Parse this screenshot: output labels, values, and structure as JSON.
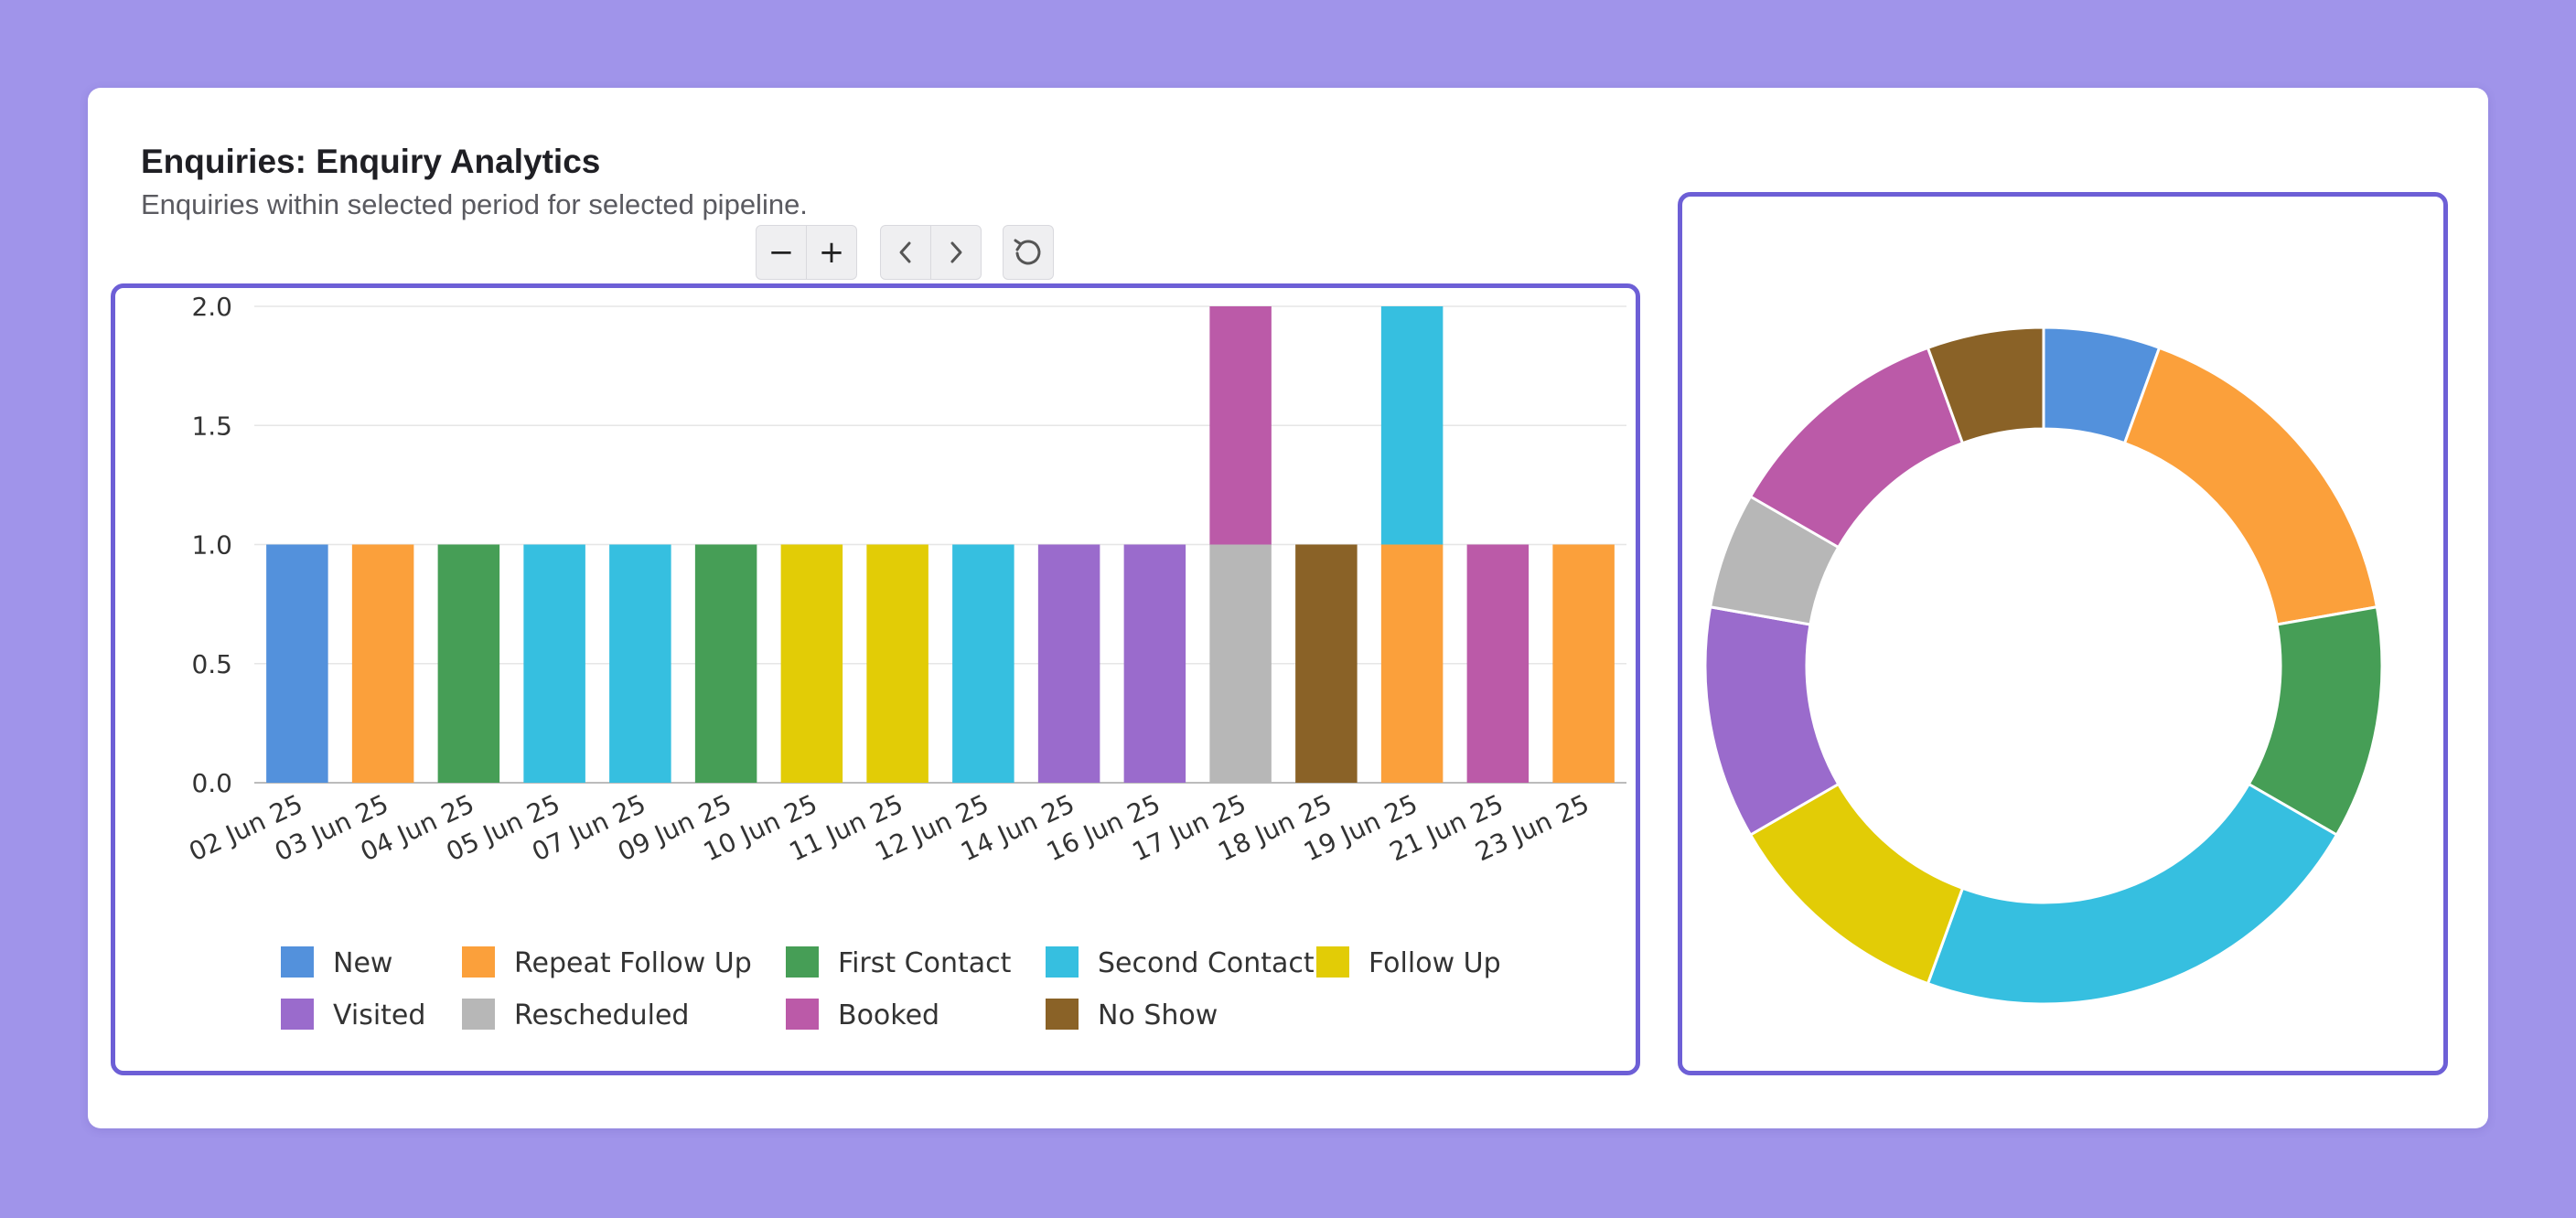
{
  "header": {
    "title": "Enquiries: Enquiry Analytics",
    "subtitle": "Enquiries within selected period for selected pipeline."
  },
  "toolbar": {
    "zoom_out": "−",
    "zoom_in": "+"
  },
  "colors": {
    "background": "#a094ea",
    "panel_border": "#6d5fd6"
  },
  "chart_data": [
    {
      "type": "bar",
      "stacked": true,
      "categories": [
        "02 Jun 25",
        "03 Jun 25",
        "04 Jun 25",
        "05 Jun 25",
        "07 Jun 25",
        "09 Jun 25",
        "10 Jun 25",
        "11 Jun 25",
        "12 Jun 25",
        "14 Jun 25",
        "16 Jun 25",
        "17 Jun 25",
        "18 Jun 25",
        "19 Jun 25",
        "21 Jun 25",
        "23 Jun 25"
      ],
      "ylim": [
        0,
        2.0
      ],
      "yticks": [
        "0.0",
        "0.5",
        "1.0",
        "1.5",
        "2.0"
      ],
      "grid": true,
      "legend_position": "bottom",
      "series": [
        {
          "name": "New",
          "color": "#5391dc",
          "values": [
            1,
            0,
            0,
            0,
            0,
            0,
            0,
            0,
            0,
            0,
            0,
            0,
            0,
            0,
            0,
            0
          ]
        },
        {
          "name": "Repeat Follow Up",
          "color": "#fba03b",
          "values": [
            0,
            1,
            0,
            0,
            0,
            0,
            0,
            0,
            0,
            0,
            0,
            0,
            0,
            1,
            0,
            1
          ]
        },
        {
          "name": "First Contact",
          "color": "#469e56",
          "values": [
            0,
            0,
            1,
            0,
            0,
            1,
            0,
            0,
            0,
            0,
            0,
            0,
            0,
            0,
            0,
            0
          ]
        },
        {
          "name": "Second Contact",
          "color": "#36bfe0",
          "values": [
            0,
            0,
            0,
            1,
            1,
            0,
            0,
            0,
            1,
            0,
            0,
            0,
            0,
            1,
            0,
            0
          ]
        },
        {
          "name": "Follow Up",
          "color": "#e2cc06",
          "values": [
            0,
            0,
            0,
            0,
            0,
            0,
            1,
            1,
            0,
            0,
            0,
            0,
            0,
            0,
            0,
            0
          ]
        },
        {
          "name": "Visited",
          "color": "#9a6bcc",
          "values": [
            0,
            0,
            0,
            0,
            0,
            0,
            0,
            0,
            0,
            1,
            1,
            0,
            0,
            0,
            0,
            0
          ]
        },
        {
          "name": "Rescheduled",
          "color": "#b7b7b7",
          "values": [
            0,
            0,
            0,
            0,
            0,
            0,
            0,
            0,
            0,
            0,
            0,
            1,
            0,
            0,
            0,
            0
          ]
        },
        {
          "name": "Booked",
          "color": "#bb5aa8",
          "values": [
            0,
            0,
            0,
            0,
            0,
            0,
            0,
            0,
            0,
            0,
            0,
            1,
            0,
            0,
            1,
            0
          ]
        },
        {
          "name": "No Show",
          "color": "#8a6227",
          "values": [
            0,
            0,
            0,
            0,
            0,
            0,
            0,
            0,
            0,
            0,
            0,
            0,
            1,
            0,
            0,
            0
          ]
        }
      ]
    },
    {
      "type": "pie",
      "donut": true,
      "labels": [
        "New",
        "Repeat Follow Up",
        "First Contact",
        "Second Contact",
        "Follow Up",
        "Visited",
        "Rescheduled",
        "Booked",
        "No Show"
      ],
      "values": [
        1,
        3,
        2,
        4,
        2,
        2,
        1,
        2,
        1
      ],
      "colors": [
        "#5391dc",
        "#fba03b",
        "#469e56",
        "#36bfe0",
        "#e2cc06",
        "#9a6bcc",
        "#b7b7b7",
        "#bb5aa8",
        "#8a6227"
      ]
    }
  ]
}
